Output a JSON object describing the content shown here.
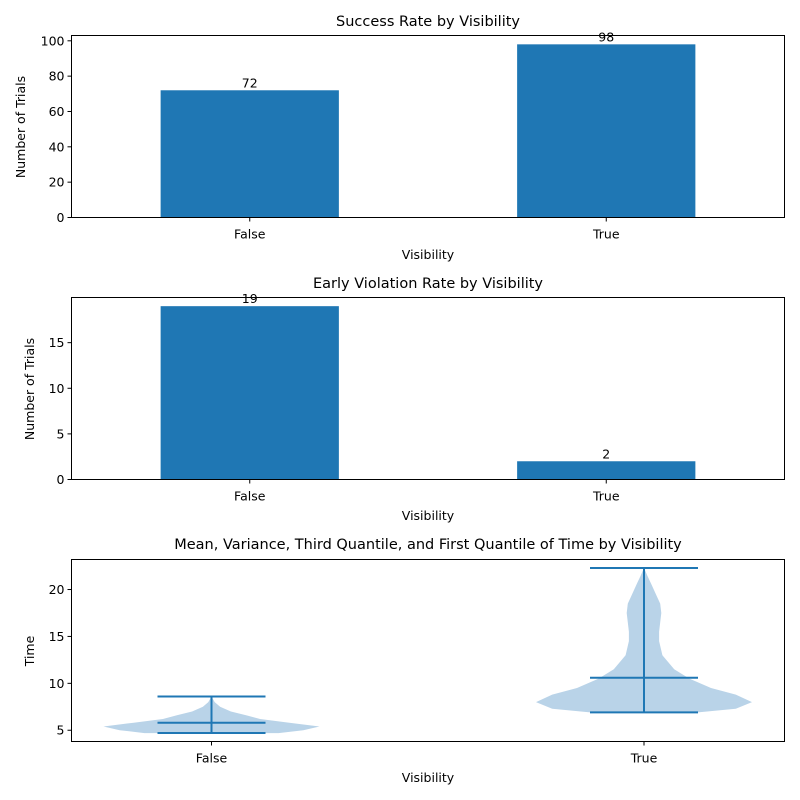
{
  "figure": {
    "background": "#ffffff"
  },
  "chart_data": [
    {
      "type": "bar",
      "title": "Success Rate by Visibility",
      "xlabel": "Visibility",
      "ylabel": "Number of Trials",
      "categories": [
        "False",
        "True"
      ],
      "values": [
        72,
        98
      ],
      "value_labels": [
        "72",
        "98"
      ],
      "ylim": [
        0,
        103
      ],
      "yticks": [
        0,
        20,
        40,
        60,
        80,
        100
      ],
      "ytick_labels": [
        "0",
        "20",
        "40",
        "60",
        "80",
        "100"
      ],
      "color": "#1f77b4",
      "grid": false
    },
    {
      "type": "bar",
      "title": "Early Violation Rate by Visibility",
      "xlabel": "Visibility",
      "ylabel": "Number of Trials",
      "categories": [
        "False",
        "True"
      ],
      "values": [
        19,
        2
      ],
      "value_labels": [
        "19",
        "2"
      ],
      "ylim": [
        0,
        19.95
      ],
      "yticks": [
        0,
        5,
        10,
        15
      ],
      "ytick_labels": [
        "0",
        "5",
        "10",
        "15"
      ],
      "color": "#1f77b4",
      "grid": false
    },
    {
      "type": "violin",
      "title": "Mean, Variance, Third Quantile, and First Quantile of Time by Visibility",
      "xlabel": "Visibility",
      "ylabel": "Time",
      "categories": [
        "False",
        "True"
      ],
      "series": [
        {
          "min": 4.7,
          "max": 8.6,
          "mean": 5.8,
          "profile": [
            [
              4.7,
              0.62
            ],
            [
              5.0,
              0.85
            ],
            [
              5.4,
              1.0
            ],
            [
              5.8,
              0.72
            ],
            [
              6.2,
              0.45
            ],
            [
              6.6,
              0.32
            ],
            [
              7.0,
              0.18
            ],
            [
              7.5,
              0.08
            ],
            [
              8.0,
              0.03
            ],
            [
              8.6,
              0.0
            ]
          ]
        },
        {
          "min": 6.9,
          "max": 22.3,
          "mean": 10.6,
          "profile": [
            [
              6.9,
              0.5
            ],
            [
              7.3,
              0.85
            ],
            [
              8.0,
              1.0
            ],
            [
              8.8,
              0.85
            ],
            [
              9.5,
              0.62
            ],
            [
              10.5,
              0.42
            ],
            [
              11.5,
              0.28
            ],
            [
              13.0,
              0.17
            ],
            [
              14.5,
              0.14
            ],
            [
              15.5,
              0.14
            ],
            [
              16.5,
              0.15
            ],
            [
              17.5,
              0.16
            ],
            [
              18.5,
              0.15
            ],
            [
              19.5,
              0.11
            ],
            [
              20.5,
              0.07
            ],
            [
              21.5,
              0.03
            ],
            [
              22.3,
              0.0
            ]
          ]
        }
      ],
      "ylim": [
        3.8,
        23.2
      ],
      "yticks": [
        5,
        10,
        15,
        20
      ],
      "ytick_labels": [
        "5",
        "10",
        "15",
        "20"
      ],
      "line_color": "#1f77b4",
      "body_color": "#b9d3e8",
      "grid": false
    }
  ]
}
